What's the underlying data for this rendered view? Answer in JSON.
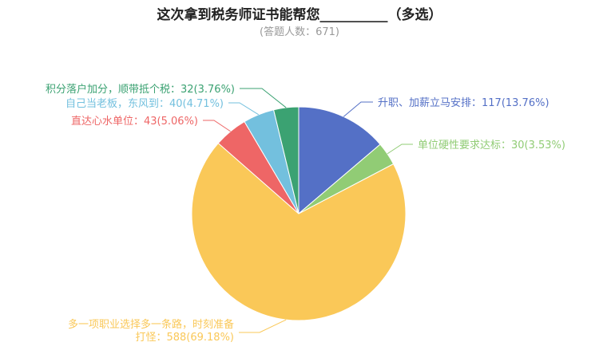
{
  "chart_data": {
    "type": "pie",
    "title": "这次拿到税务师证书能帮您__________（多选）",
    "subtitle": "(答题人数：671)",
    "slices": [
      {
        "label": "升职、加薪立马安排",
        "value": 117,
        "percent": "13.76%",
        "color": "#5470c6"
      },
      {
        "label": "单位硬性要求达标",
        "value": 30,
        "percent": "3.53%",
        "color": "#91cc75"
      },
      {
        "label": "多一项职业选择多一条路，时刻准备打怪",
        "value": 588,
        "percent": "69.18%",
        "color": "#fac858"
      },
      {
        "label": "直达心水单位",
        "value": 43,
        "percent": "5.06%",
        "color": "#ee6666"
      },
      {
        "label": "自己当老板，东风到",
        "value": 40,
        "percent": "4.71%",
        "color": "#73c0de"
      },
      {
        "label": "积分落户加分，顺带抵个税",
        "value": 32,
        "percent": "3.76%",
        "color": "#3ba272"
      }
    ],
    "label_text": [
      [
        "升职、加薪立马安排：117(13.76%)"
      ],
      [
        "单位硬性要求达标：30(3.53%)"
      ],
      [
        "多一项职业选择多一条路，时刻准备",
        "打怪：588(69.18%)"
      ],
      [
        "直达心水单位：43(5.06%)"
      ],
      [
        "自己当老板，东风到：40(4.71%)"
      ],
      [
        "积分落户加分，顺带抵个税：32(3.76%)"
      ]
    ],
    "start_angle": "12 o'clock",
    "direction": "clockwise"
  }
}
